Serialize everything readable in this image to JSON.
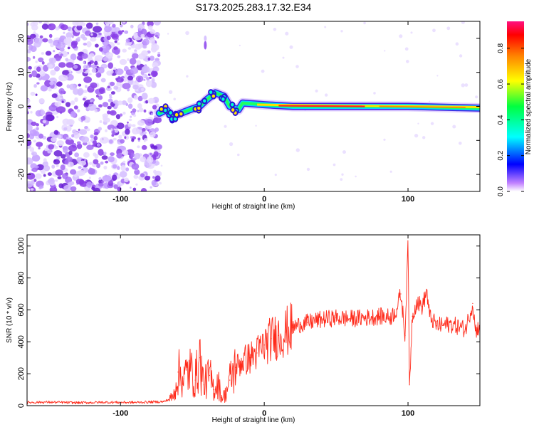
{
  "title": "S173.2025.283.17.32.E34",
  "colors": {
    "snr_line": "#ff2a1a",
    "scatter": "#7a2ee0",
    "band_core": "#ff2020"
  },
  "chart_data": [
    {
      "type": "heatmap",
      "name": "spectrogram",
      "xlabel": "Height of straight line (km)",
      "ylabel": "Frequency (Hz)",
      "xlim": [
        -165,
        150
      ],
      "ylim": [
        -25,
        25
      ],
      "xticks": [
        -100,
        0,
        100
      ],
      "yticks": [
        -20,
        -10,
        0,
        10,
        20
      ],
      "xtick_labels": [
        "-100",
        "0",
        "100"
      ],
      "ytick_labels": [
        "-20",
        "-10",
        "0",
        "10",
        "20"
      ],
      "noise_region_km": [
        -165,
        -73
      ],
      "signal_track": [
        {
          "x": -73,
          "y": -2
        },
        {
          "x": -68,
          "y": -1
        },
        {
          "x": -64,
          "y": -3
        },
        {
          "x": -58,
          "y": -2
        },
        {
          "x": -52,
          "y": -1
        },
        {
          "x": -45,
          "y": 0
        },
        {
          "x": -40,
          "y": 2
        },
        {
          "x": -34,
          "y": 4
        },
        {
          "x": -28,
          "y": 3
        },
        {
          "x": -24,
          "y": 0
        },
        {
          "x": -18,
          "y": -1
        },
        {
          "x": -15,
          "y": 1
        },
        {
          "x": 0,
          "y": 0.5
        },
        {
          "x": 20,
          "y": 0
        },
        {
          "x": 60,
          "y": 0
        },
        {
          "x": 100,
          "y": 0
        },
        {
          "x": 150,
          "y": -0.5
        }
      ],
      "colorbar": {
        "label": "Normalized spectral amplitude",
        "range": [
          0,
          0.95
        ],
        "ticks": [
          0.0,
          0.2,
          0.4,
          0.6,
          0.8
        ],
        "tick_labels": [
          "0.0",
          "0.2",
          "0.4",
          "0.6",
          "0.8"
        ]
      }
    },
    {
      "type": "line",
      "name": "snr",
      "xlabel": "Height of straight line (km)",
      "ylabel": "SNR (10 * v/v)",
      "xlim": [
        -165,
        150
      ],
      "ylim": [
        0,
        1070
      ],
      "xticks": [
        -100,
        0,
        100
      ],
      "yticks": [
        0,
        200,
        400,
        600,
        800,
        1000
      ],
      "xtick_labels": [
        "-100",
        "0",
        "100"
      ],
      "ytick_labels": [
        "0",
        "200",
        "400",
        "600",
        "800",
        "1000"
      ],
      "series": [
        {
          "name": "SNR",
          "x": [
            -165,
            -150,
            -130,
            -110,
            -90,
            -70,
            -66,
            -63,
            -60,
            -56,
            -52,
            -48,
            -45,
            -42,
            -38,
            -35,
            -32,
            -30,
            -27,
            -24,
            -20,
            -15,
            -10,
            -5,
            0,
            5,
            10,
            15,
            20,
            25,
            30,
            40,
            50,
            60,
            70,
            80,
            88,
            92,
            95,
            98,
            100,
            101,
            103,
            106,
            110,
            113,
            115,
            120,
            130,
            140,
            145,
            147,
            150
          ],
          "values": [
            20,
            22,
            18,
            21,
            20,
            25,
            40,
            60,
            210,
            170,
            230,
            160,
            300,
            130,
            190,
            100,
            150,
            50,
            70,
            160,
            240,
            280,
            300,
            330,
            380,
            420,
            440,
            460,
            490,
            510,
            520,
            540,
            550,
            545,
            550,
            560,
            555,
            600,
            700,
            440,
            1050,
            130,
            560,
            650,
            620,
            720,
            560,
            500,
            510,
            480,
            640,
            470,
            500
          ]
        }
      ]
    }
  ]
}
